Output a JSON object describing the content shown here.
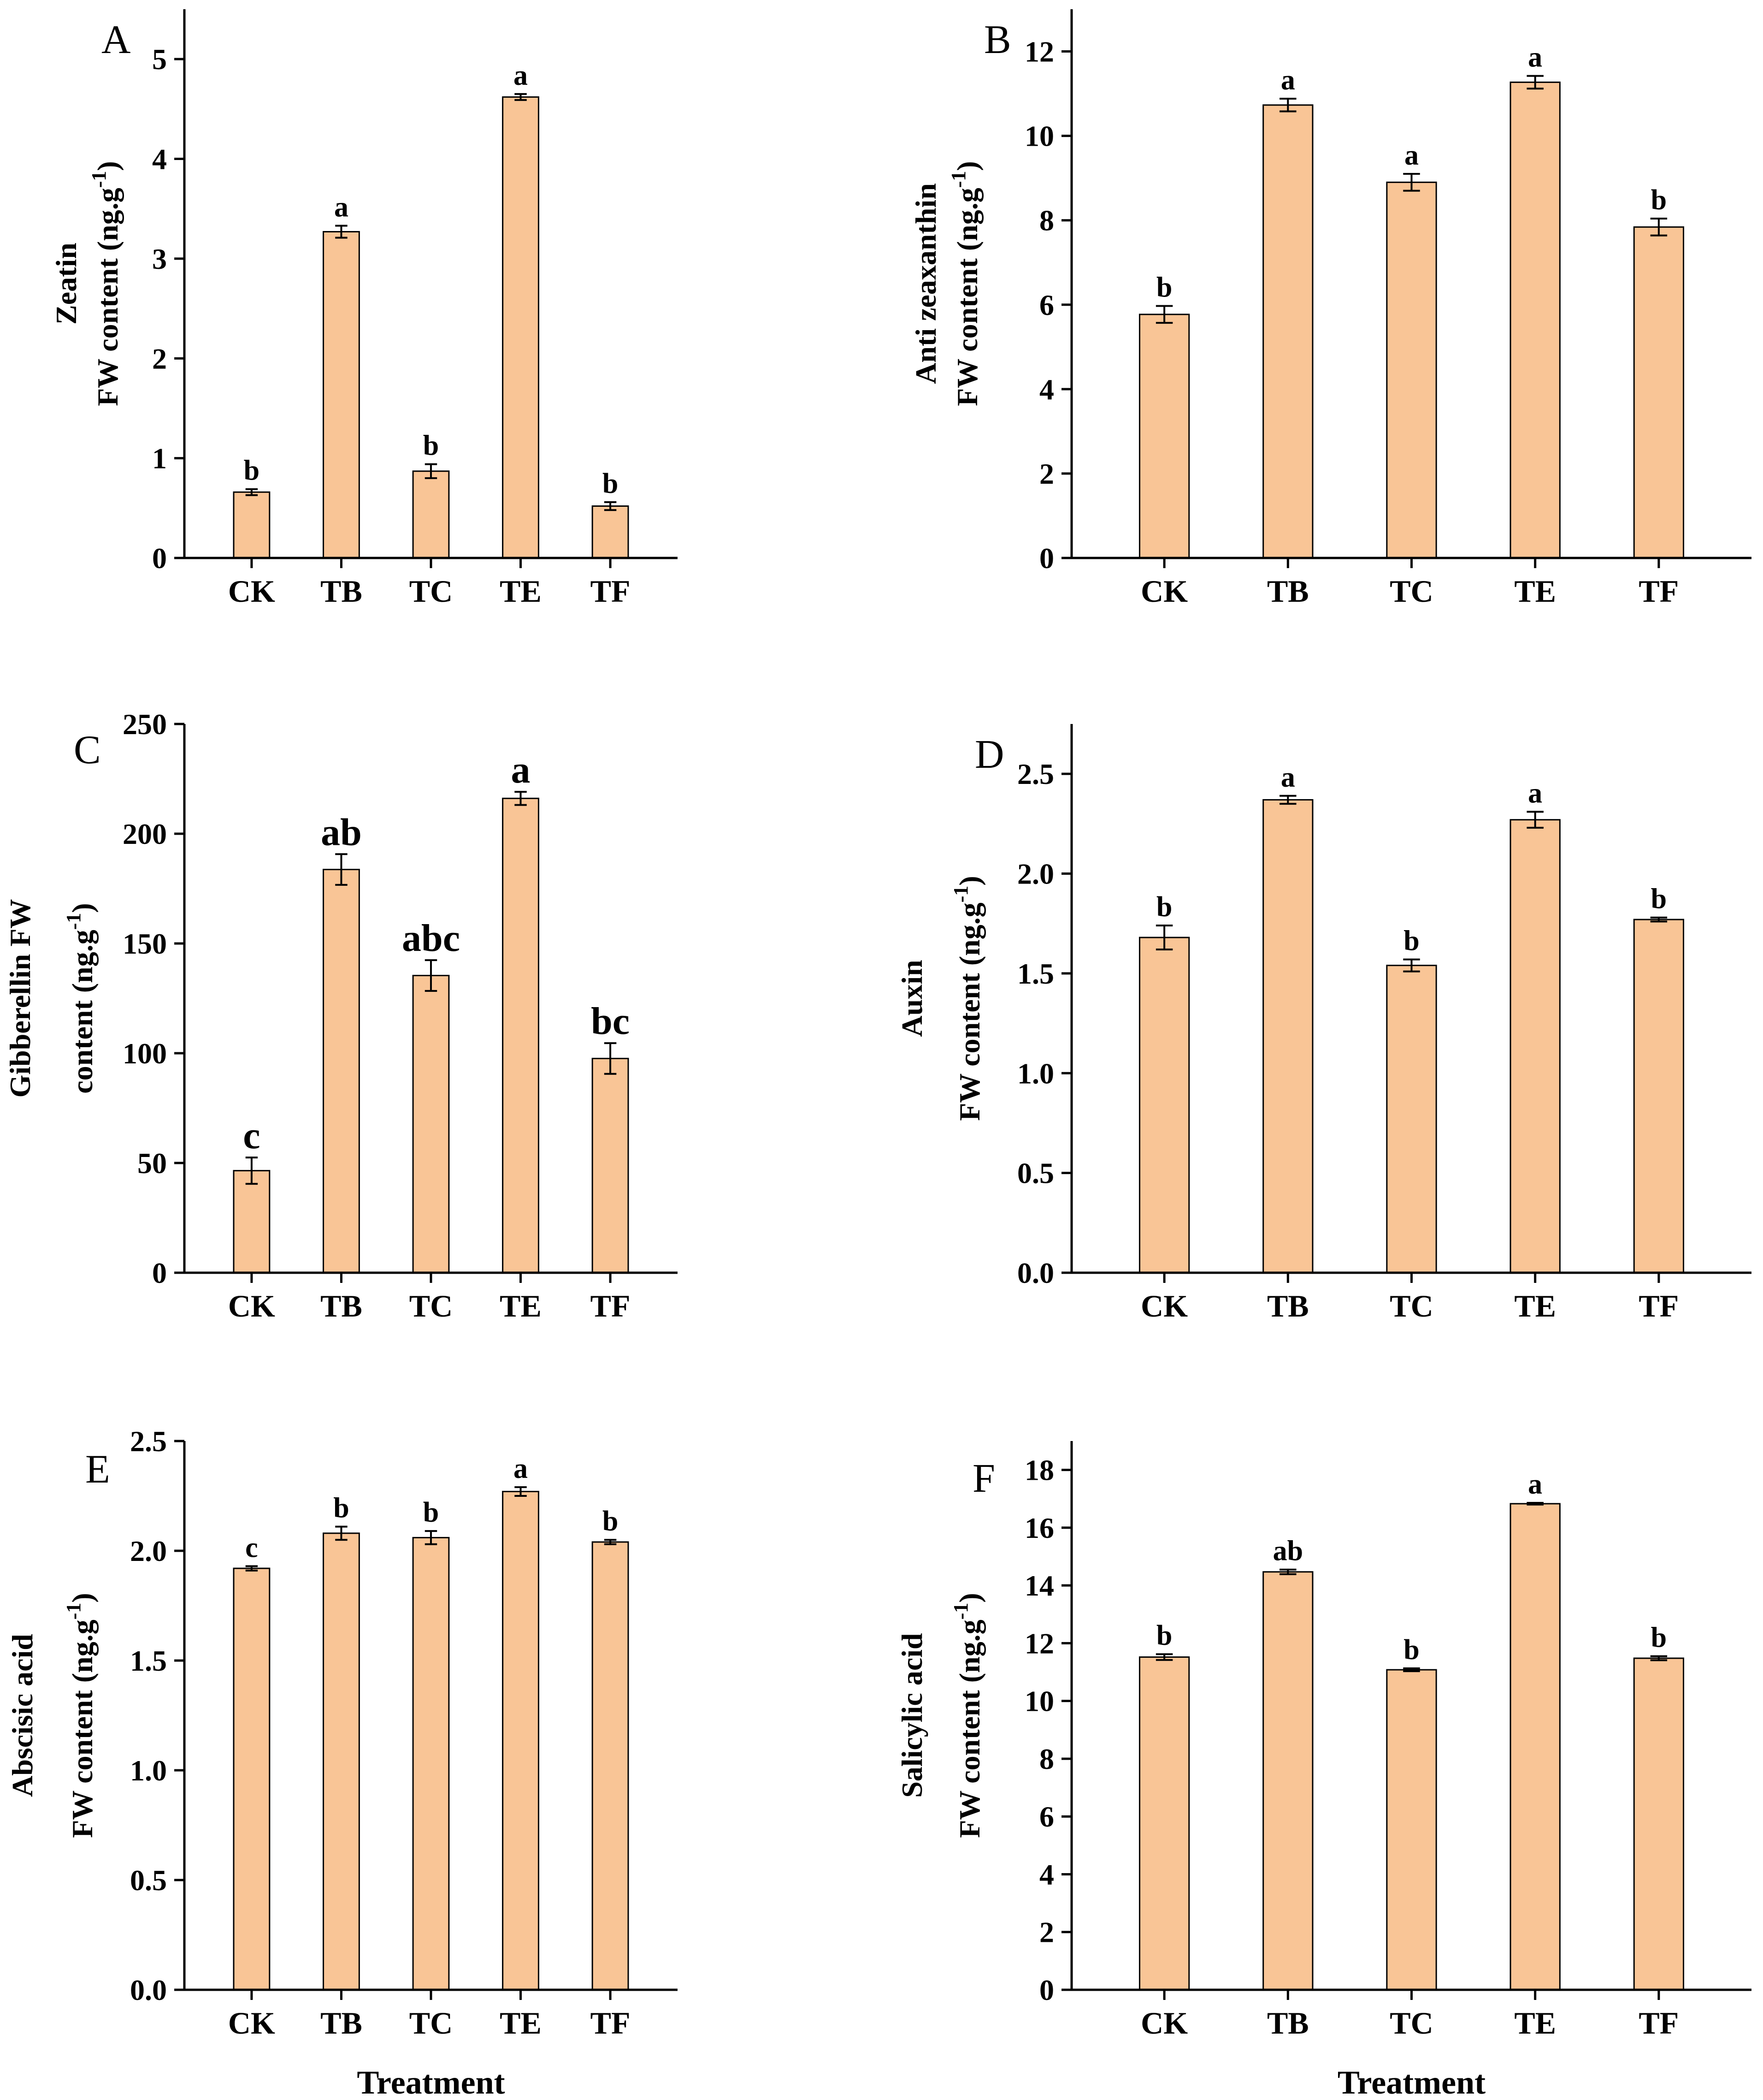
{
  "figure": {
    "bar_color": "#F9C596",
    "bar_edge_color": "#000000",
    "xlabel": "Treatment"
  },
  "chart_data": [
    {
      "type": "bar",
      "panel": "A",
      "categories": [
        "CK",
        "TB",
        "TC",
        "TE",
        "TF"
      ],
      "values": [
        0.66,
        3.27,
        0.87,
        4.62,
        0.52
      ],
      "errors": [
        0.03,
        0.06,
        0.07,
        0.03,
        0.04
      ],
      "letters": [
        "b",
        "a",
        "b",
        "a",
        "b"
      ],
      "ylabel_lines": [
        "Zeatin",
        "FW content (ng.g",
        "-1",
        ")"
      ],
      "ylim": [
        0,
        5.5
      ],
      "yticks": [
        "0",
        "1",
        "2",
        "3",
        "4",
        "5"
      ],
      "ytick_values": [
        0,
        1,
        2,
        3,
        4,
        5
      ],
      "xlabel": ""
    },
    {
      "type": "bar",
      "panel": "B",
      "categories": [
        "CK",
        "TB",
        "TC",
        "TE",
        "TF"
      ],
      "values": [
        5.77,
        10.73,
        8.9,
        11.27,
        7.84
      ],
      "errors": [
        0.2,
        0.15,
        0.2,
        0.15,
        0.2
      ],
      "letters": [
        "b",
        "a",
        "a",
        "a",
        "b"
      ],
      "ylabel_lines": [
        "Anti zeaxanthin",
        "FW content (ng.g",
        "-1",
        ")"
      ],
      "ylim": [
        0,
        13
      ],
      "yticks": [
        "0",
        "2",
        "4",
        "6",
        "8",
        "10",
        "12"
      ],
      "ytick_values": [
        0,
        2,
        4,
        6,
        8,
        10,
        12
      ],
      "xlabel": ""
    },
    {
      "type": "bar",
      "panel": "C",
      "categories": [
        "CK",
        "TB",
        "TC",
        "TE",
        "TF"
      ],
      "values": [
        46.5,
        183.7,
        135.4,
        216.1,
        97.6
      ],
      "errors": [
        6,
        7,
        7,
        3,
        7
      ],
      "letters": [
        "c",
        "ab",
        "abc",
        "a",
        "bc"
      ],
      "ylabel_lines": [
        "Gibberellin FW",
        "content (ng.g",
        "-1",
        ")"
      ],
      "ylim": [
        0,
        250
      ],
      "yticks": [
        "0",
        "50",
        "100",
        "150",
        "200",
        "250"
      ],
      "ytick_values": [
        0,
        50,
        100,
        150,
        200,
        250
      ],
      "xlabel": ""
    },
    {
      "type": "bar",
      "panel": "D",
      "categories": [
        "CK",
        "TB",
        "TC",
        "TE",
        "TF"
      ],
      "values": [
        1.68,
        2.37,
        1.54,
        2.27,
        1.77
      ],
      "errors": [
        0.06,
        0.02,
        0.03,
        0.04,
        0.01
      ],
      "letters": [
        "b",
        "a",
        "b",
        "a",
        "b"
      ],
      "ylabel_lines": [
        "Auxin",
        "FW content (ng.g",
        "-1",
        ")"
      ],
      "ylim": [
        0,
        2.75
      ],
      "yticks": [
        "0.0",
        "0.5",
        "1.0",
        "1.5",
        "2.0",
        "2.5"
      ],
      "ytick_values": [
        0,
        0.5,
        1,
        1.5,
        2,
        2.5
      ],
      "xlabel": ""
    },
    {
      "type": "bar",
      "panel": "E",
      "categories": [
        "CK",
        "TB",
        "TC",
        "TE",
        "TF"
      ],
      "values": [
        1.92,
        2.08,
        2.06,
        2.27,
        2.04
      ],
      "errors": [
        0.01,
        0.03,
        0.03,
        0.02,
        0.01
      ],
      "letters": [
        "c",
        "b",
        "b",
        "a",
        "b"
      ],
      "ylabel_lines": [
        "Abscisic acid",
        "FW content (ng.g",
        "-1",
        ")"
      ],
      "ylim": [
        0,
        2.5
      ],
      "yticks": [
        "0.0",
        "0.5",
        "1.0",
        "1.5",
        "2.0",
        "2.5"
      ],
      "ytick_values": [
        0,
        0.5,
        1,
        1.5,
        2,
        2.5
      ],
      "xlabel": "Treatment"
    },
    {
      "type": "bar",
      "panel": "F",
      "categories": [
        "CK",
        "TB",
        "TC",
        "TE",
        "TF"
      ],
      "values": [
        11.52,
        14.47,
        11.08,
        16.83,
        11.48
      ],
      "errors": [
        0.1,
        0.08,
        0.05,
        0.03,
        0.07
      ],
      "letters": [
        "b",
        "ab",
        "b",
        "a",
        "b"
      ],
      "ylabel_lines": [
        "Salicylic acid",
        "FW content (ng.g",
        "-1",
        ")"
      ],
      "ylim": [
        0,
        19
      ],
      "yticks": [
        "0",
        "2",
        "4",
        "6",
        "8",
        "10",
        "12",
        "14",
        "16",
        "18"
      ],
      "ytick_values": [
        0,
        2,
        4,
        6,
        8,
        10,
        12,
        14,
        16,
        18
      ],
      "xlabel": "Treatment"
    }
  ]
}
